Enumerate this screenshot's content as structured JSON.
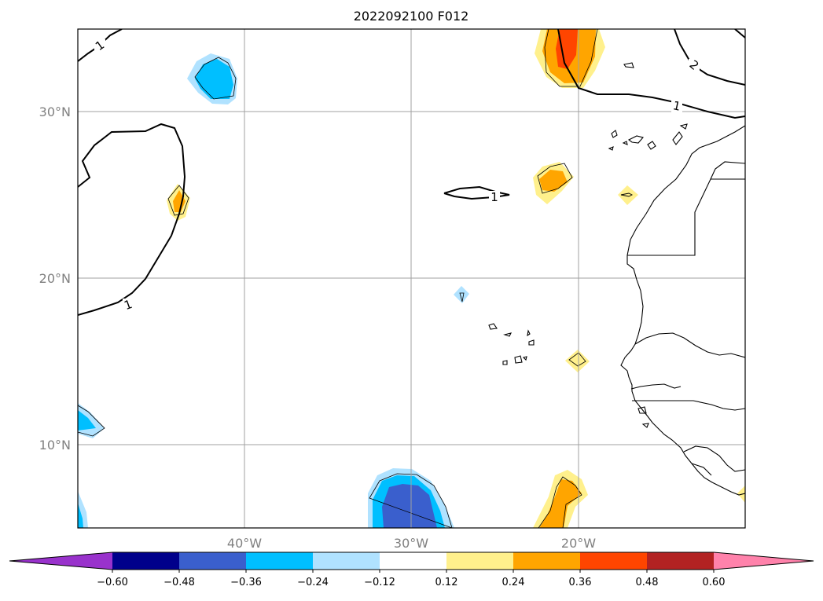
{
  "title": "2022092100 F012",
  "lat_labels": [
    "30°N",
    "20°N",
    "10°N"
  ],
  "lon_labels": [
    "40°W",
    "30°W",
    "20°W"
  ],
  "contour_labels": [
    "1",
    "1",
    "1",
    "1",
    "2"
  ],
  "colorbar": {
    "ticks": [
      "−0.60",
      "−0.48",
      "−0.36",
      "−0.24",
      "−0.12",
      "0.12",
      "0.24",
      "0.36",
      "0.48",
      "0.60"
    ],
    "colors": [
      "#9932cc",
      "#00008b",
      "#3a5fcd",
      "#00bfff",
      "#b0e2ff",
      "#ffffff",
      "#fff08c",
      "#ffa500",
      "#ff4500",
      "#b22222",
      "#ff82ab"
    ]
  },
  "chart_data": {
    "type": "heatmap",
    "title": "2022092100 F012",
    "x_ticks": [
      "40°W",
      "30°W",
      "20°W"
    ],
    "y_ticks": [
      "30°N",
      "20°N",
      "10°N"
    ],
    "xlim": [
      -50,
      -10
    ],
    "ylim": [
      5,
      35
    ],
    "grid": true,
    "levels": [
      -0.6,
      -0.48,
      -0.36,
      -0.24,
      -0.12,
      0.12,
      0.24,
      0.36,
      0.48,
      0.6
    ],
    "contour_values": [
      1,
      1,
      1,
      1,
      2
    ]
  }
}
